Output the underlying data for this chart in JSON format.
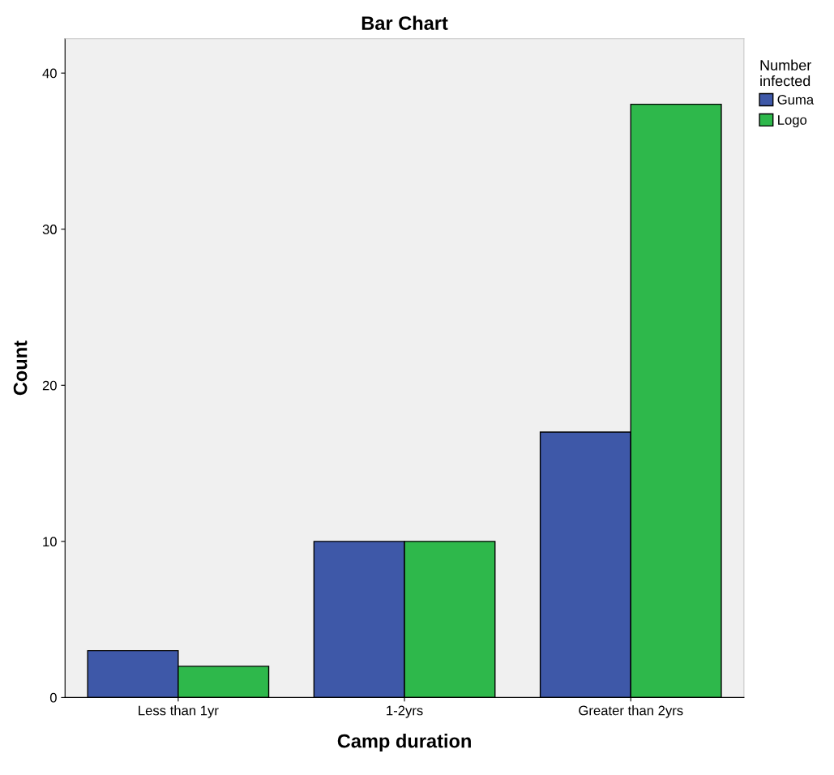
{
  "chart_data": {
    "type": "bar",
    "title": "Bar Chart",
    "xlabel": "Camp duration",
    "ylabel": "Count",
    "legend_title": "Number infected",
    "categories": [
      "Less than 1yr",
      "1-2yrs",
      "Greater than 2yrs"
    ],
    "series": [
      {
        "name": "Guma",
        "color": "#3e58a8",
        "values": [
          3,
          10,
          17
        ]
      },
      {
        "name": "Logo",
        "color": "#2eb84b",
        "values": [
          2,
          10,
          38
        ]
      }
    ],
    "ylim": [
      0,
      42.2
    ],
    "yticks": [
      0,
      10,
      20,
      30,
      40
    ],
    "legend": "top right",
    "grid": false
  }
}
